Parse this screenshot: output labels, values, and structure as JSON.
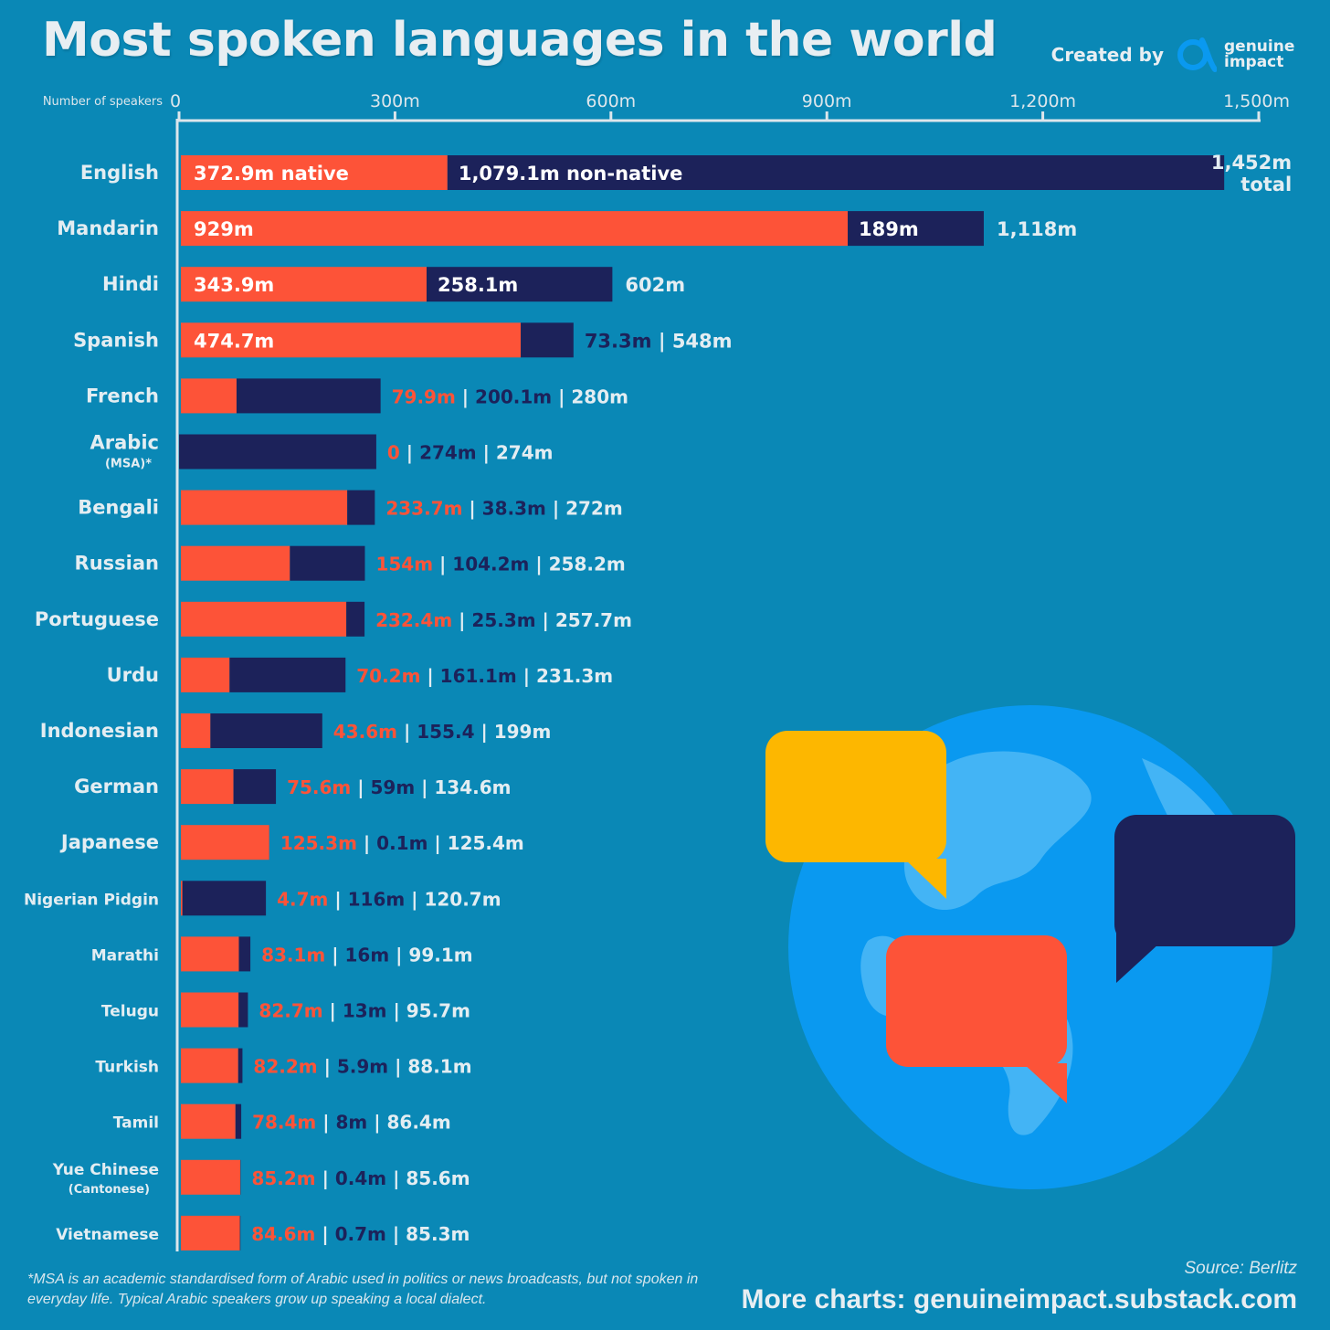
{
  "title": "Most spoken languages in the world",
  "credit": {
    "label": "Created by",
    "brand": "genuine impact",
    "brand_line1": "genuine",
    "brand_line2": "impact",
    "icon": "alpha-logo-icon"
  },
  "colors": {
    "native": "#fd5338",
    "non_native": "#1c225a",
    "background": "#0a88b6",
    "axis": "#dce6ec",
    "label": "#e3edf2"
  },
  "chart_data": {
    "type": "bar",
    "orientation": "horizontal",
    "stacked": true,
    "axis_title": "Number of speakers",
    "xlim": [
      0,
      1500
    ],
    "unit": "m",
    "ticks": [
      {
        "value": 0,
        "label": "0"
      },
      {
        "value": 300,
        "label": "300m"
      },
      {
        "value": 600,
        "label": "600m"
      },
      {
        "value": 900,
        "label": "900m"
      },
      {
        "value": 1200,
        "label": "1,200m"
      },
      {
        "value": 1500,
        "label": "1,500m"
      }
    ],
    "categories": [
      {
        "name": "English",
        "sub": ""
      },
      {
        "name": "Mandarin",
        "sub": ""
      },
      {
        "name": "Hindi",
        "sub": ""
      },
      {
        "name": "Spanish",
        "sub": ""
      },
      {
        "name": "French",
        "sub": ""
      },
      {
        "name": "Arabic",
        "sub": "(MSA)*"
      },
      {
        "name": "Bengali",
        "sub": ""
      },
      {
        "name": "Russian",
        "sub": ""
      },
      {
        "name": "Portuguese",
        "sub": ""
      },
      {
        "name": "Urdu",
        "sub": ""
      },
      {
        "name": "Indonesian",
        "sub": ""
      },
      {
        "name": "German",
        "sub": ""
      },
      {
        "name": "Japanese",
        "sub": ""
      },
      {
        "name": "Nigerian Pidgin",
        "sub": ""
      },
      {
        "name": "Marathi",
        "sub": ""
      },
      {
        "name": "Telugu",
        "sub": ""
      },
      {
        "name": "Turkish",
        "sub": ""
      },
      {
        "name": "Tamil",
        "sub": ""
      },
      {
        "name": "Yue Chinese",
        "sub": "(Cantonese)"
      },
      {
        "name": "Vietnamese",
        "sub": ""
      }
    ],
    "series": [
      {
        "name": "native",
        "values": [
          372.9,
          929,
          343.9,
          474.7,
          79.9,
          0,
          233.7,
          154,
          232.4,
          70.2,
          43.6,
          75.6,
          125.3,
          4.7,
          83.1,
          82.7,
          82.2,
          78.4,
          85.2,
          84.6
        ]
      },
      {
        "name": "non-native",
        "values": [
          1079.1,
          189,
          258.1,
          73.3,
          200.1,
          274,
          38.3,
          104.2,
          25.3,
          161.1,
          155.4,
          59,
          0.1,
          116,
          16,
          13,
          5.9,
          8,
          0.4,
          0.7
        ]
      }
    ],
    "totals": [
      1452,
      1118,
      602,
      548,
      280,
      274,
      272,
      258.2,
      257.7,
      231.3,
      199,
      134.6,
      125.4,
      120.7,
      99.1,
      95.7,
      88.1,
      86.4,
      85.6,
      85.3
    ],
    "value_labels": {
      "native": [
        "372.9m native",
        "929m",
        "343.9m",
        "474.7m",
        "79.9m",
        "0",
        "233.7m",
        "154m",
        "232.4m",
        "70.2m",
        "43.6m",
        "75.6m",
        "125.3m",
        "4.7m",
        "83.1m",
        "82.7m",
        "82.2m",
        "78.4m",
        "85.2m",
        "84.6m"
      ],
      "non_native": [
        "1,079.1m non-native",
        "189m",
        "258.1m",
        "73.3m",
        "200.1m",
        "274m",
        "38.3m",
        "104.2m",
        "25.3m",
        "161.1m",
        "155.4",
        "59m",
        "0.1m",
        "116m",
        "16m",
        "13m",
        "5.9m",
        "8m",
        "0.4m",
        "0.7m"
      ],
      "total": [
        "1,452m total",
        "1,118m",
        "602m",
        "548m",
        "280m",
        "274m",
        "272m",
        "258.2m",
        "257.7m",
        "231.3m",
        "199m",
        "134.6m",
        "125.4m",
        "120.7m",
        "99.1m",
        "95.7m",
        "88.1m",
        "86.4m",
        "85.6m",
        "85.3m"
      ]
    },
    "inside_labels": {
      "native": 4,
      "non_native": 3
    },
    "separator": "|",
    "legend": "inline"
  },
  "footnote": "*MSA is an academic standardised form of Arabic used in politics or news broadcasts, but not spoken in everyday life. Typical Arabic speakers grow up speaking a local dialect.",
  "source": "Source: Berlitz",
  "more_charts": "More charts: genuineimpact.substack.com"
}
